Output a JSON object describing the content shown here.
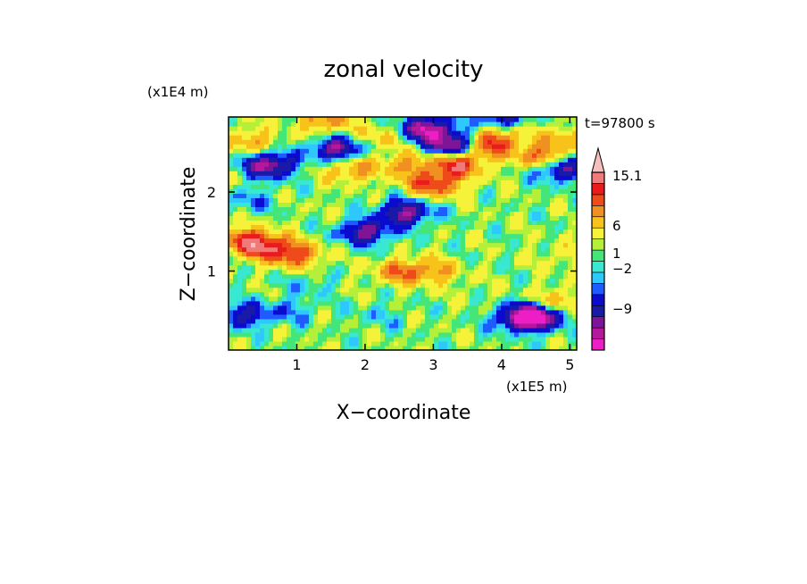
{
  "chart_data": {
    "type": "heatmap",
    "title": "zonal velocity",
    "xlabel": "X−coordinate",
    "ylabel": "Z−coordinate",
    "x_scale_label": "(x1E5 m)",
    "y_scale_label": "(x1E4 m)",
    "time_label": "t=97800 s",
    "xlim": [
      0,
      5.1
    ],
    "ylim": [
      0,
      2.95
    ],
    "x_ticks": [
      1,
      2,
      3,
      4,
      5
    ],
    "x_tick_labels": [
      "1",
      "2",
      "3",
      "4",
      "5"
    ],
    "y_ticks": [
      1,
      2
    ],
    "y_tick_labels": [
      "1",
      "2"
    ],
    "colorbar": {
      "levels": [
        -13,
        -11,
        -9,
        -7,
        -5,
        -3,
        -2,
        -1,
        0,
        1,
        2,
        4,
        6,
        8,
        10,
        12,
        15.1
      ],
      "colors": [
        "#ee1ec6",
        "#b4189c",
        "#7e1496",
        "#1a1aa8",
        "#0b0bd0",
        "#1e5cff",
        "#2ec8ff",
        "#38e8d0",
        "#44e67a",
        "#b4f03a",
        "#f6f23a",
        "#f7c31a",
        "#f09020",
        "#ee4a1a",
        "#e81c1c",
        "#f07a7a",
        "#f7bebe"
      ],
      "labels": [
        "15.1",
        "6",
        "1",
        "−2",
        "−9"
      ],
      "label_values": [
        15.1,
        6,
        1,
        -2,
        -9
      ]
    },
    "features": [
      {
        "x": 0.6,
        "z": 2.35,
        "u": -11
      },
      {
        "x": 1.6,
        "z": 2.55,
        "u": -10
      },
      {
        "x": 2.9,
        "z": 2.8,
        "u": -12
      },
      {
        "x": 3.3,
        "z": 2.6,
        "u": -11
      },
      {
        "x": 4.0,
        "z": 2.9,
        "u": -10
      },
      {
        "x": 4.85,
        "z": 2.3,
        "u": -9
      },
      {
        "x": 2.0,
        "z": 1.5,
        "u": -9
      },
      {
        "x": 2.6,
        "z": 1.75,
        "u": -10
      },
      {
        "x": 3.0,
        "z": 2.1,
        "u": 9
      },
      {
        "x": 3.35,
        "z": 2.35,
        "u": 10
      },
      {
        "x": 3.8,
        "z": 2.6,
        "u": 9
      },
      {
        "x": 4.6,
        "z": 2.45,
        "u": 8
      },
      {
        "x": 4.0,
        "z": 2.8,
        "u": 7
      },
      {
        "x": 0.25,
        "z": 1.4,
        "u": 9
      },
      {
        "x": 0.6,
        "z": 1.3,
        "u": 8
      },
      {
        "x": 1.0,
        "z": 1.2,
        "u": 7
      },
      {
        "x": 1.8,
        "z": 2.3,
        "u": 6
      },
      {
        "x": 2.6,
        "z": 2.35,
        "u": 5
      },
      {
        "x": 2.5,
        "z": 1.0,
        "u": 6
      },
      {
        "x": 3.0,
        "z": 1.0,
        "u": 5
      },
      {
        "x": 0.2,
        "z": 0.45,
        "u": -7
      },
      {
        "x": 0.9,
        "z": 0.5,
        "u": -3
      },
      {
        "x": 2.2,
        "z": 0.45,
        "u": -2
      },
      {
        "x": 1.2,
        "z": 0.85,
        "u": -2
      },
      {
        "x": 4.3,
        "z": 0.4,
        "u": -10
      },
      {
        "x": 4.55,
        "z": 0.45,
        "u": -11
      },
      {
        "x": 4.8,
        "z": 0.6,
        "u": 6
      },
      {
        "x": 3.6,
        "z": 0.8,
        "u": 0.5
      },
      {
        "x": 1.3,
        "z": 1.8,
        "u": 0.5
      },
      {
        "x": 0.3,
        "z": 1.9,
        "u": -3
      },
      {
        "x": 0.3,
        "z": 2.65,
        "u": 5
      },
      {
        "x": 1.4,
        "z": 2.9,
        "u": 6
      },
      {
        "x": 2.2,
        "z": 2.7,
        "u": 4
      },
      {
        "x": 4.9,
        "z": 2.7,
        "u": 4
      },
      {
        "x": 4.5,
        "z": 1.5,
        "u": 0.2
      },
      {
        "x": 4.9,
        "z": 1.2,
        "u": 2
      }
    ]
  }
}
